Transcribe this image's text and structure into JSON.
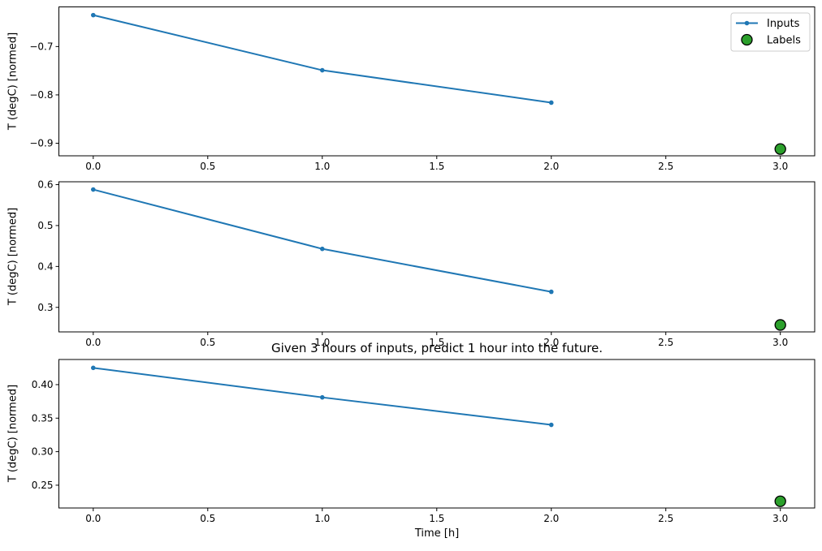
{
  "figure": {
    "title": "Given 3 hours of inputs, predict 1 hour into the future.",
    "xlabel": "Time [h]",
    "background": "#ffffff",
    "accent_blue": "#1f77b4",
    "accent_green": "#2ca02c",
    "legend": {
      "position": "top-right-first-subplot",
      "items": [
        {
          "label": "Inputs",
          "type": "line-dot",
          "color": "#1f77b4"
        },
        {
          "label": "Labels",
          "type": "circle",
          "fill": "#2ca02c",
          "edge": "#000000"
        }
      ]
    }
  },
  "chart_data": [
    {
      "type": "line",
      "name": "window-example-1",
      "ylabel": "T (degC) [normed]",
      "xlim": [
        -0.15,
        3.15
      ],
      "ylim": [
        -0.926,
        -0.618
      ],
      "grid": false,
      "xticks": [
        0,
        0.5,
        1,
        1.5,
        2,
        2.5,
        3
      ],
      "xtick_labels": [
        "0.0",
        "0.5",
        "1.0",
        "1.5",
        "2.0",
        "2.5",
        "3.0"
      ],
      "yticks": [
        -0.7,
        -0.8,
        -0.9
      ],
      "ytick_labels": [
        "−0.7",
        "−0.8",
        "−0.9"
      ],
      "legend_visible": true,
      "series": [
        {
          "name": "Inputs",
          "style": "line-dot",
          "color": "#1f77b4",
          "x": [
            0,
            1,
            2
          ],
          "y": [
            -0.635,
            -0.749,
            -0.816
          ]
        },
        {
          "name": "Labels",
          "style": "scatter",
          "fill": "#2ca02c",
          "edge": "#000000",
          "x": [
            3
          ],
          "y": [
            -0.912
          ]
        }
      ]
    },
    {
      "type": "line",
      "name": "window-example-2",
      "ylabel": "T (degC) [normed]",
      "xlim": [
        -0.15,
        3.15
      ],
      "ylim": [
        0.24,
        0.607
      ],
      "grid": false,
      "xticks": [
        0,
        0.5,
        1,
        1.5,
        2,
        2.5,
        3
      ],
      "xtick_labels": [
        "0.0",
        "0.5",
        "1.0",
        "1.5",
        "2.0",
        "2.5",
        "3.0"
      ],
      "yticks": [
        0.3,
        0.4,
        0.5,
        0.6
      ],
      "ytick_labels": [
        "0.3",
        "0.4",
        "0.5",
        "0.6"
      ],
      "legend_visible": false,
      "series": [
        {
          "name": "Inputs",
          "style": "line-dot",
          "color": "#1f77b4",
          "x": [
            0,
            1,
            2
          ],
          "y": [
            0.588,
            0.443,
            0.338
          ]
        },
        {
          "name": "Labels",
          "style": "scatter",
          "fill": "#2ca02c",
          "edge": "#000000",
          "x": [
            3
          ],
          "y": [
            0.257
          ]
        }
      ]
    },
    {
      "type": "line",
      "name": "window-example-3",
      "ylabel": "T (degC) [normed]",
      "xlim": [
        -0.15,
        3.15
      ],
      "ylim": [
        0.216,
        0.4375
      ],
      "grid": false,
      "xticks": [
        0,
        0.5,
        1,
        1.5,
        2,
        2.5,
        3
      ],
      "xtick_labels": [
        "0.0",
        "0.5",
        "1.0",
        "1.5",
        "2.0",
        "2.5",
        "3.0"
      ],
      "yticks": [
        0.25,
        0.3,
        0.35,
        0.4
      ],
      "ytick_labels": [
        "0.25",
        "0.30",
        "0.35",
        "0.40"
      ],
      "legend_visible": false,
      "series": [
        {
          "name": "Inputs",
          "style": "line-dot",
          "color": "#1f77b4",
          "x": [
            0,
            1,
            2
          ],
          "y": [
            0.425,
            0.381,
            0.34
          ]
        },
        {
          "name": "Labels",
          "style": "scatter",
          "fill": "#2ca02c",
          "edge": "#000000",
          "x": [
            3
          ],
          "y": [
            0.226
          ]
        }
      ]
    }
  ]
}
